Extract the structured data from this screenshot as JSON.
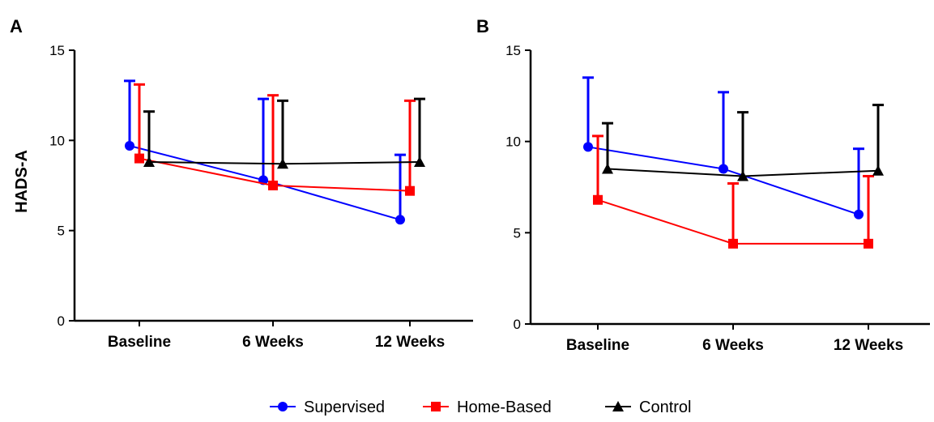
{
  "legend": [
    {
      "name": "Supervised",
      "color": "#0000ff",
      "marker": "circle"
    },
    {
      "name": "Home-Based",
      "color": "#ff0000",
      "marker": "square"
    },
    {
      "name": "Control",
      "color": "#000000",
      "marker": "triangle"
    }
  ],
  "chart_data": [
    {
      "panel": "A",
      "type": "line",
      "ylabel": "HADS-A",
      "xlabel": "",
      "categories": [
        "Baseline",
        "6 Weeks",
        "12 Weeks"
      ],
      "ylim": [
        0,
        15
      ],
      "yticks": [
        0,
        5,
        10,
        15
      ],
      "error_bars": "upper",
      "series": [
        {
          "name": "Supervised",
          "color": "#0000ff",
          "marker": "circle",
          "values": [
            9.7,
            7.8,
            5.6
          ],
          "upper": [
            13.3,
            12.3,
            9.2
          ]
        },
        {
          "name": "Home-Based",
          "color": "#ff0000",
          "marker": "square",
          "values": [
            9.0,
            7.5,
            7.2
          ],
          "upper": [
            13.1,
            12.5,
            12.2
          ]
        },
        {
          "name": "Control",
          "color": "#000000",
          "marker": "triangle",
          "values": [
            8.8,
            8.7,
            8.8
          ],
          "upper": [
            11.6,
            12.2,
            12.3
          ]
        }
      ]
    },
    {
      "panel": "B",
      "type": "line",
      "ylabel": "",
      "xlabel": "",
      "categories": [
        "Baseline",
        "6 Weeks",
        "12 Weeks"
      ],
      "ylim": [
        0,
        15
      ],
      "yticks": [
        0,
        5,
        10,
        15
      ],
      "error_bars": "upper",
      "series": [
        {
          "name": "Supervised",
          "color": "#0000ff",
          "marker": "circle",
          "values": [
            9.7,
            8.5,
            6.0
          ],
          "upper": [
            13.5,
            12.7,
            9.6
          ]
        },
        {
          "name": "Home-Based",
          "color": "#ff0000",
          "marker": "square",
          "values": [
            6.8,
            4.4,
            4.4
          ],
          "upper": [
            10.3,
            7.7,
            8.1
          ]
        },
        {
          "name": "Control",
          "color": "#000000",
          "marker": "triangle",
          "values": [
            8.5,
            8.1,
            8.4
          ],
          "upper": [
            11.0,
            11.6,
            12.0
          ]
        }
      ]
    }
  ]
}
